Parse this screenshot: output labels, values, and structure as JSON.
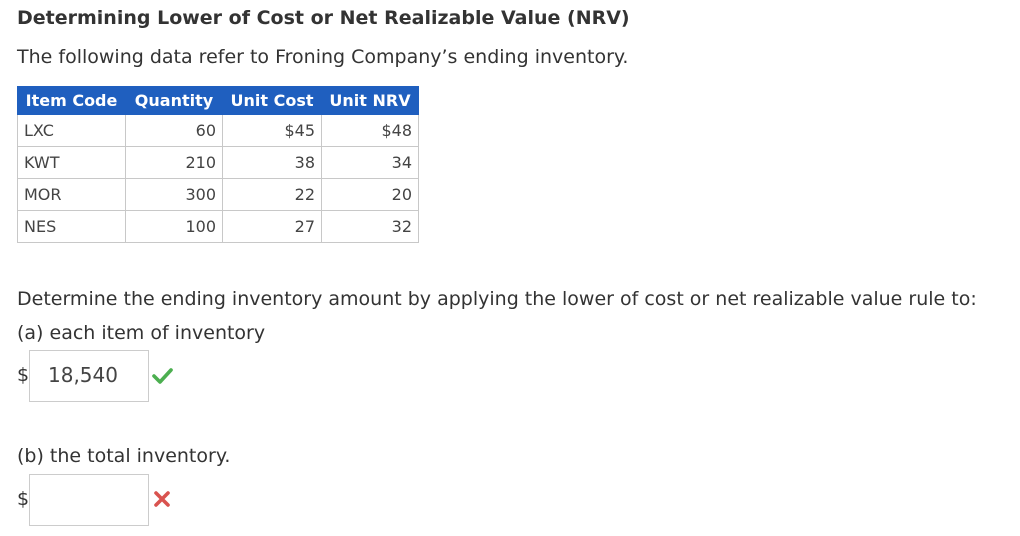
{
  "title": "Determining Lower of Cost or Net Realizable Value (NRV)",
  "intro": "The following data refer to Froning Company’s ending inventory.",
  "table": {
    "headers": [
      "Item Code",
      "Quantity",
      "Unit Cost",
      "Unit NRV"
    ],
    "rows": [
      {
        "code": "LXC",
        "quantity": "60",
        "unit_cost": "$45",
        "unit_nrv": "$48"
      },
      {
        "code": "KWT",
        "quantity": "210",
        "unit_cost": "38",
        "unit_nrv": "34"
      },
      {
        "code": "MOR",
        "quantity": "300",
        "unit_cost": "22",
        "unit_nrv": "20"
      },
      {
        "code": "NES",
        "quantity": "100",
        "unit_cost": "27",
        "unit_nrv": "32"
      }
    ]
  },
  "question": "Determine the ending inventory amount by applying the lower of cost or net realizable value rule to:",
  "part_a": {
    "label": "(a) each item of inventory",
    "currency": "$",
    "value": "18,540",
    "status": "correct"
  },
  "part_b": {
    "label": "(b) the total inventory.",
    "currency": "$",
    "value": "",
    "status": "incorrect"
  },
  "colors": {
    "header_bg": "#1f5fbf",
    "correct": "#4caf50",
    "incorrect": "#d9534f"
  },
  "icons": {
    "correct": "check-icon",
    "incorrect": "x-icon"
  }
}
